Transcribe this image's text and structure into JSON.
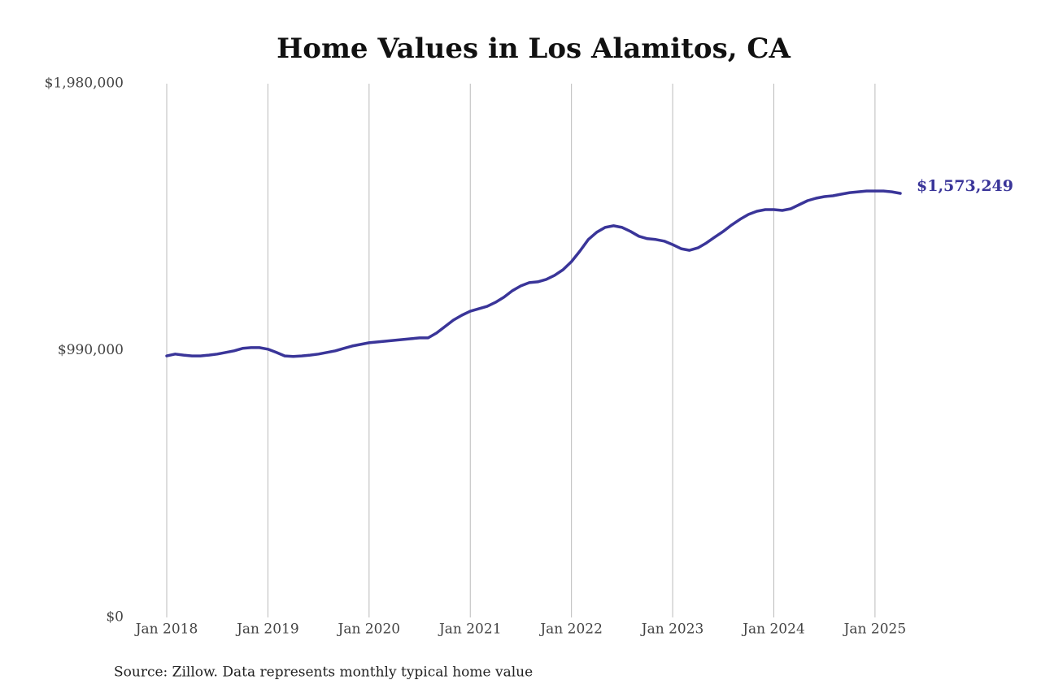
{
  "chart_data": {
    "type": "line",
    "title": "Home Values in Los Alamitos, CA",
    "source": "Source: Zillow. Data represents monthly typical home value",
    "x": [
      "2018-01",
      "2018-02",
      "2018-03",
      "2018-04",
      "2018-05",
      "2018-06",
      "2018-07",
      "2018-08",
      "2018-09",
      "2018-10",
      "2018-11",
      "2018-12",
      "2019-01",
      "2019-02",
      "2019-03",
      "2019-04",
      "2019-05",
      "2019-06",
      "2019-07",
      "2019-08",
      "2019-09",
      "2019-10",
      "2019-11",
      "2019-12",
      "2020-01",
      "2020-02",
      "2020-03",
      "2020-04",
      "2020-05",
      "2020-06",
      "2020-07",
      "2020-08",
      "2020-09",
      "2020-10",
      "2020-11",
      "2020-12",
      "2021-01",
      "2021-02",
      "2021-03",
      "2021-04",
      "2021-05",
      "2021-06",
      "2021-07",
      "2021-08",
      "2021-09",
      "2021-10",
      "2021-11",
      "2021-12",
      "2022-01",
      "2022-02",
      "2022-03",
      "2022-04",
      "2022-05",
      "2022-06",
      "2022-07",
      "2022-08",
      "2022-09",
      "2022-10",
      "2022-11",
      "2022-12",
      "2023-01",
      "2023-02",
      "2023-03",
      "2023-04",
      "2023-05",
      "2023-06",
      "2023-07",
      "2023-08",
      "2023-09",
      "2023-10",
      "2023-11",
      "2023-12",
      "2024-01",
      "2024-02",
      "2024-03",
      "2024-04",
      "2024-05",
      "2024-06",
      "2024-07",
      "2024-08",
      "2024-09",
      "2024-10",
      "2024-11",
      "2024-12",
      "2025-01",
      "2025-02",
      "2025-03",
      "2025-04"
    ],
    "series": [
      {
        "color": "#3a3599",
        "values": [
          970000,
          977000,
          973000,
          970000,
          970000,
          973000,
          977000,
          983000,
          989000,
          998000,
          1001000,
          1001000,
          995000,
          983000,
          970000,
          968000,
          970000,
          973000,
          977000,
          983000,
          989000,
          998000,
          1007000,
          1013000,
          1019000,
          1022000,
          1025000,
          1028000,
          1031000,
          1034000,
          1037000,
          1037000,
          1055000,
          1079000,
          1103000,
          1121000,
          1136000,
          1145000,
          1154000,
          1169000,
          1188000,
          1212000,
          1230000,
          1242000,
          1245000,
          1254000,
          1269000,
          1290000,
          1320000,
          1359000,
          1402000,
          1429000,
          1447000,
          1453000,
          1447000,
          1432000,
          1414000,
          1405000,
          1402000,
          1396000,
          1383000,
          1368000,
          1362000,
          1371000,
          1389000,
          1411000,
          1432000,
          1456000,
          1477000,
          1495000,
          1507000,
          1513000,
          1513000,
          1510000,
          1516000,
          1531000,
          1546000,
          1555000,
          1561000,
          1564000,
          1570000,
          1576000,
          1579000,
          1582000,
          1582000,
          1582000,
          1579000,
          1573249
        ],
        "value_labels": [
          null,
          null,
          null,
          null,
          null,
          null,
          null,
          null,
          null,
          null,
          null,
          null,
          null,
          null,
          null,
          null,
          null,
          null,
          null,
          null,
          null,
          null,
          null,
          null,
          null,
          null,
          null,
          null,
          null,
          null,
          null,
          null,
          null,
          null,
          null,
          null,
          null,
          null,
          null,
          null,
          null,
          null,
          null,
          null,
          null,
          null,
          null,
          null,
          null,
          null,
          null,
          null,
          null,
          null,
          null,
          null,
          null,
          null,
          null,
          null,
          null,
          null,
          null,
          null,
          null,
          null,
          null,
          null,
          null,
          null,
          null,
          null,
          null,
          null,
          null,
          null,
          null,
          null,
          null,
          null,
          null,
          null,
          null,
          null,
          null,
          null,
          null,
          "$1,573,249"
        ]
      }
    ],
    "xlim": [
      "2018-01",
      "2025-04"
    ],
    "xticks": [
      {
        "value": "2018-01",
        "label": "Jan 2018"
      },
      {
        "value": "2019-01",
        "label": "Jan 2019"
      },
      {
        "value": "2020-01",
        "label": "Jan 2020"
      },
      {
        "value": "2021-01",
        "label": "Jan 2021"
      },
      {
        "value": "2022-01",
        "label": "Jan 2022"
      },
      {
        "value": "2023-01",
        "label": "Jan 2023"
      },
      {
        "value": "2024-01",
        "label": "Jan 2024"
      },
      {
        "value": "2025-01",
        "label": "Jan 2025"
      }
    ],
    "ylim": [
      0,
      1980000
    ],
    "yticks": [
      {
        "value": 0,
        "label": "$0"
      },
      {
        "value": 990000,
        "label": "$990,000"
      },
      {
        "value": 1980000,
        "label": "$1,980,000"
      }
    ],
    "grid": "x"
  }
}
